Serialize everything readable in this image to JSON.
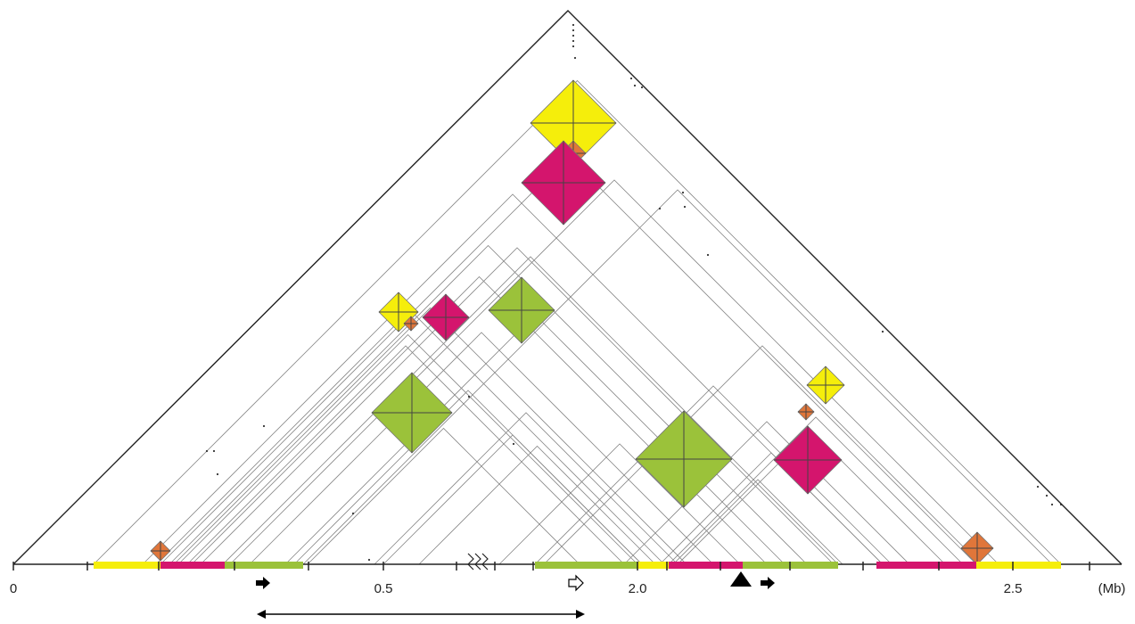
{
  "colors": {
    "yellow": "#f5ee0b",
    "magenta": "#d4156d",
    "green": "#9bc23a",
    "orange": "#e0763a",
    "line": "#888888",
    "axis": "#222222"
  },
  "axis": {
    "unit_label": "(Mb)",
    "tick_labels": [
      "0",
      "0.5",
      "2.0",
      "2.5"
    ]
  },
  "markers": [
    {
      "type": "solid-arrow-right",
      "name": "solid-arrow-1"
    },
    {
      "type": "open-arrow-right",
      "name": "open-arrow"
    },
    {
      "type": "black-triangle",
      "name": "triangle-marker"
    },
    {
      "type": "solid-arrow-right",
      "name": "solid-arrow-2"
    },
    {
      "type": "double-headed-arrow",
      "name": "span-arrow"
    }
  ],
  "segments": [
    {
      "color": "yellow"
    },
    {
      "color": "magenta"
    },
    {
      "color": "green"
    },
    {
      "color": "green"
    },
    {
      "color": "yellow"
    },
    {
      "color": "magenta"
    },
    {
      "color": "green"
    },
    {
      "color": "magenta"
    },
    {
      "color": "yellow"
    }
  ],
  "diamonds": [
    {
      "color": "yellow"
    },
    {
      "color": "orange"
    },
    {
      "color": "magenta"
    },
    {
      "color": "yellow"
    },
    {
      "color": "orange"
    },
    {
      "color": "magenta"
    },
    {
      "color": "green"
    },
    {
      "color": "green"
    },
    {
      "color": "green"
    },
    {
      "color": "yellow"
    },
    {
      "color": "orange"
    },
    {
      "color": "magenta"
    },
    {
      "color": "orange"
    },
    {
      "color": "orange"
    }
  ]
}
